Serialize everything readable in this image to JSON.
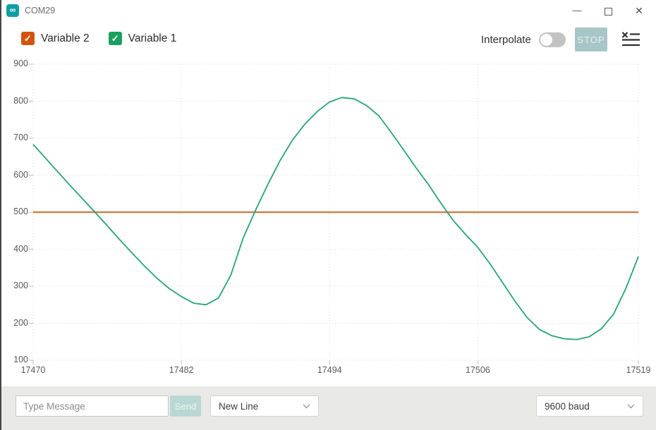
{
  "window": {
    "title": "COM29",
    "app_icon_glyph": "∞",
    "controls": {
      "minimize": "—",
      "close": "✕"
    }
  },
  "toolbar": {
    "legend": [
      {
        "label": "Variable 2",
        "color": "#d4530f",
        "checked": true
      },
      {
        "label": "Variable 1",
        "color": "#1ca05f",
        "checked": true
      }
    ],
    "check_glyph": "✓",
    "interpolate_label": "Interpolate",
    "interpolate_on": false,
    "stop_label": "STOP"
  },
  "chart_data": {
    "type": "line",
    "title": "",
    "xlabel": "",
    "ylabel": "",
    "xlim": [
      17470,
      17519
    ],
    "ylim": [
      100,
      900
    ],
    "x_ticks": [
      17470,
      17482,
      17494,
      17506,
      17519
    ],
    "y_ticks": [
      100,
      200,
      300,
      400,
      500,
      600,
      700,
      800,
      900
    ],
    "grid": true,
    "legend_position": "top-left",
    "x": [
      17470,
      17471,
      17472,
      17473,
      17474,
      17475,
      17476,
      17477,
      17478,
      17479,
      17480,
      17481,
      17482,
      17483,
      17484,
      17485,
      17486,
      17487,
      17488,
      17489,
      17490,
      17491,
      17492,
      17493,
      17494,
      17495,
      17496,
      17497,
      17498,
      17499,
      17500,
      17501,
      17502,
      17503,
      17504,
      17505,
      17506,
      17507,
      17508,
      17509,
      17510,
      17511,
      17512,
      17513,
      17514,
      17515,
      17516,
      17517,
      17518,
      17519
    ],
    "series": [
      {
        "name": "Variable 2",
        "color": "#c8834e",
        "values": [
          500,
          500,
          500,
          500,
          500,
          500,
          500,
          500,
          500,
          500,
          500,
          500,
          500,
          500,
          500,
          500,
          500,
          500,
          500,
          500,
          500,
          500,
          500,
          500,
          500,
          500,
          500,
          500,
          500,
          500,
          500,
          500,
          500,
          500,
          500,
          500,
          500,
          500,
          500,
          500,
          500,
          500,
          500,
          500,
          500,
          500,
          500,
          500,
          500,
          500
        ]
      },
      {
        "name": "Variable 1",
        "color": "#26a379",
        "values": [
          683,
          646,
          609,
          572,
          536,
          500,
          463,
          426,
          390,
          355,
          322,
          294,
          272,
          254,
          250,
          268,
          330,
          430,
          505,
          575,
          640,
          695,
          738,
          772,
          798,
          810,
          806,
          788,
          760,
          715,
          668,
          620,
          575,
          525,
          478,
          440,
          405,
          360,
          310,
          260,
          215,
          183,
          166,
          158,
          156,
          163,
          185,
          225,
          295,
          380
        ]
      }
    ]
  },
  "message_bar": {
    "input_placeholder": "Type Message",
    "send_label": "Send",
    "line_ending": "New Line",
    "baud_rate": "9600 baud"
  }
}
